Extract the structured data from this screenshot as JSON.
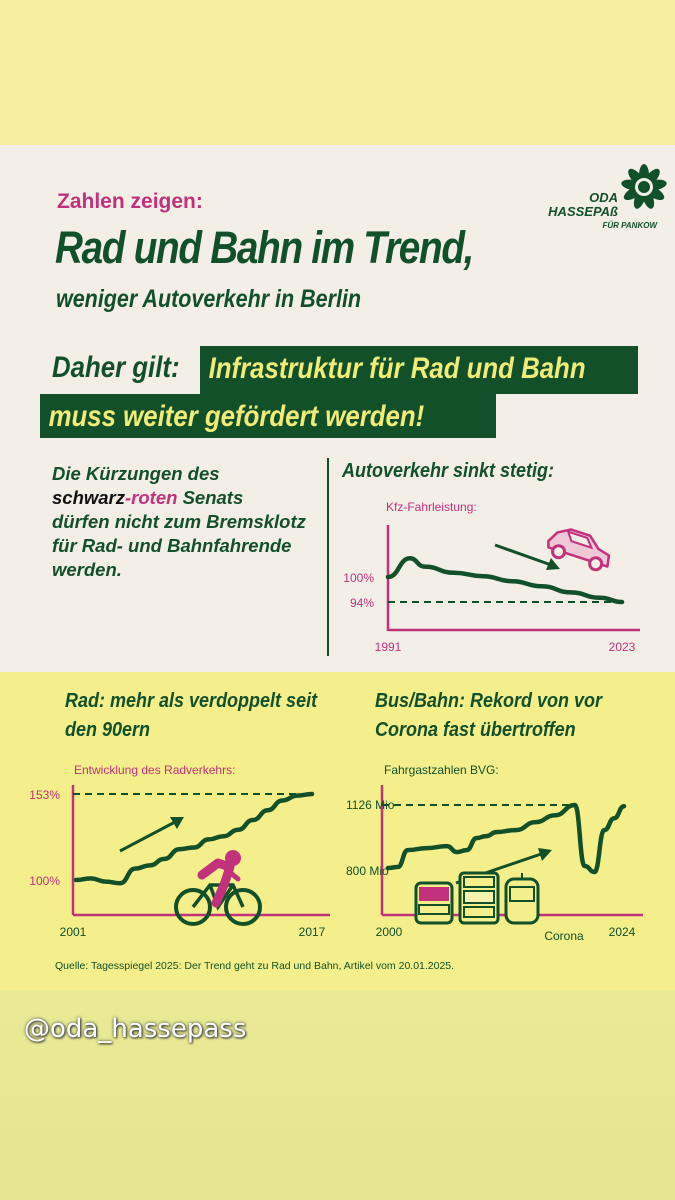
{
  "header": {
    "eyebrow": "Zahlen zeigen:",
    "headline": "Rad und Bahn im Trend,",
    "subhead": "weniger Autoverkehr in Berlin",
    "daher": "Daher gilt:",
    "highlight_1": "Infrastruktur für Rad und Bahn",
    "highlight_2": "muss weiter gefördert werden!"
  },
  "logo": {
    "line1": "ODA",
    "line2": "HASSEPAß",
    "line3": "FÜR PANKOW",
    "icon": "sunflower-icon"
  },
  "body": {
    "line1": "Die Kürzungen des",
    "schwarz": "schwarz",
    "roten": "-roten",
    "senats": " Senats",
    "line3": "dürfen nicht zum Bremsklotz",
    "line4": "für Rad- und Bahnfahrende",
    "line5": "werden."
  },
  "colors": {
    "green": "#12502a",
    "pink": "#c2317c",
    "yellow_band": "#f4ef8a",
    "highlight_text": "#f0ec78"
  },
  "chart_data": [
    {
      "type": "line",
      "title": "Autoverkehr sinkt stetig:",
      "subtitle": "Kfz-Fahrleistung:",
      "x_labels": [
        "1991",
        "2023"
      ],
      "y_labels": [
        "100%",
        "94%"
      ],
      "reference_value": 94,
      "icon": "car-icon",
      "series": [
        {
          "x": [
            1991,
            1994,
            1996,
            2000,
            2004,
            2008,
            2012,
            2016,
            2020,
            2023
          ],
          "values": [
            100,
            104.5,
            102.5,
            101,
            100.2,
            99,
            97.8,
            96.3,
            95,
            94
          ]
        }
      ]
    },
    {
      "type": "line",
      "title": "Rad: mehr als verdoppelt seit den 90ern",
      "subtitle": "Entwicklung des Radverkehrs:",
      "x_labels": [
        "2001",
        "2017"
      ],
      "y_labels": [
        "153%",
        "100%"
      ],
      "reference_value": 153,
      "icon": "cyclist-icon",
      "series": [
        {
          "x": [
            2001,
            2002,
            2003,
            2004,
            2005,
            2006,
            2007,
            2008,
            2009,
            2010,
            2011,
            2012,
            2013,
            2014,
            2015,
            2016,
            2017
          ],
          "values": [
            100,
            101,
            99,
            98,
            107,
            109,
            113,
            119,
            120,
            125,
            127,
            131,
            137,
            143,
            149,
            152,
            153
          ]
        }
      ]
    },
    {
      "type": "line",
      "title": "Bus/Bahn: Rekord von vor Corona fast übertroffen",
      "subtitle": "Fahrgastzahlen BVG:",
      "x_labels": [
        "2000",
        "Corona",
        "2024"
      ],
      "y_labels": [
        "1126 Mio",
        "800 Mio"
      ],
      "reference_value": 1126,
      "icon": "bus-train-icon",
      "series": [
        {
          "x": [
            2000,
            2001,
            2002,
            2004,
            2006,
            2007,
            2008,
            2009,
            2010,
            2011,
            2013,
            2015,
            2017,
            2019,
            2020,
            2021,
            2022,
            2023,
            2024
          ],
          "values": [
            810,
            815,
            900,
            910,
            920,
            890,
            900,
            960,
            970,
            990,
            1000,
            1040,
            1075,
            1126,
            820,
            790,
            1000,
            1060,
            1120
          ]
        }
      ]
    }
  ],
  "source": "Quelle: Tagesspiegel 2025: Der Trend geht zu Rad und Bahn, Artikel vom 20.01.2025.",
  "watermark": "@oda_hassepass"
}
